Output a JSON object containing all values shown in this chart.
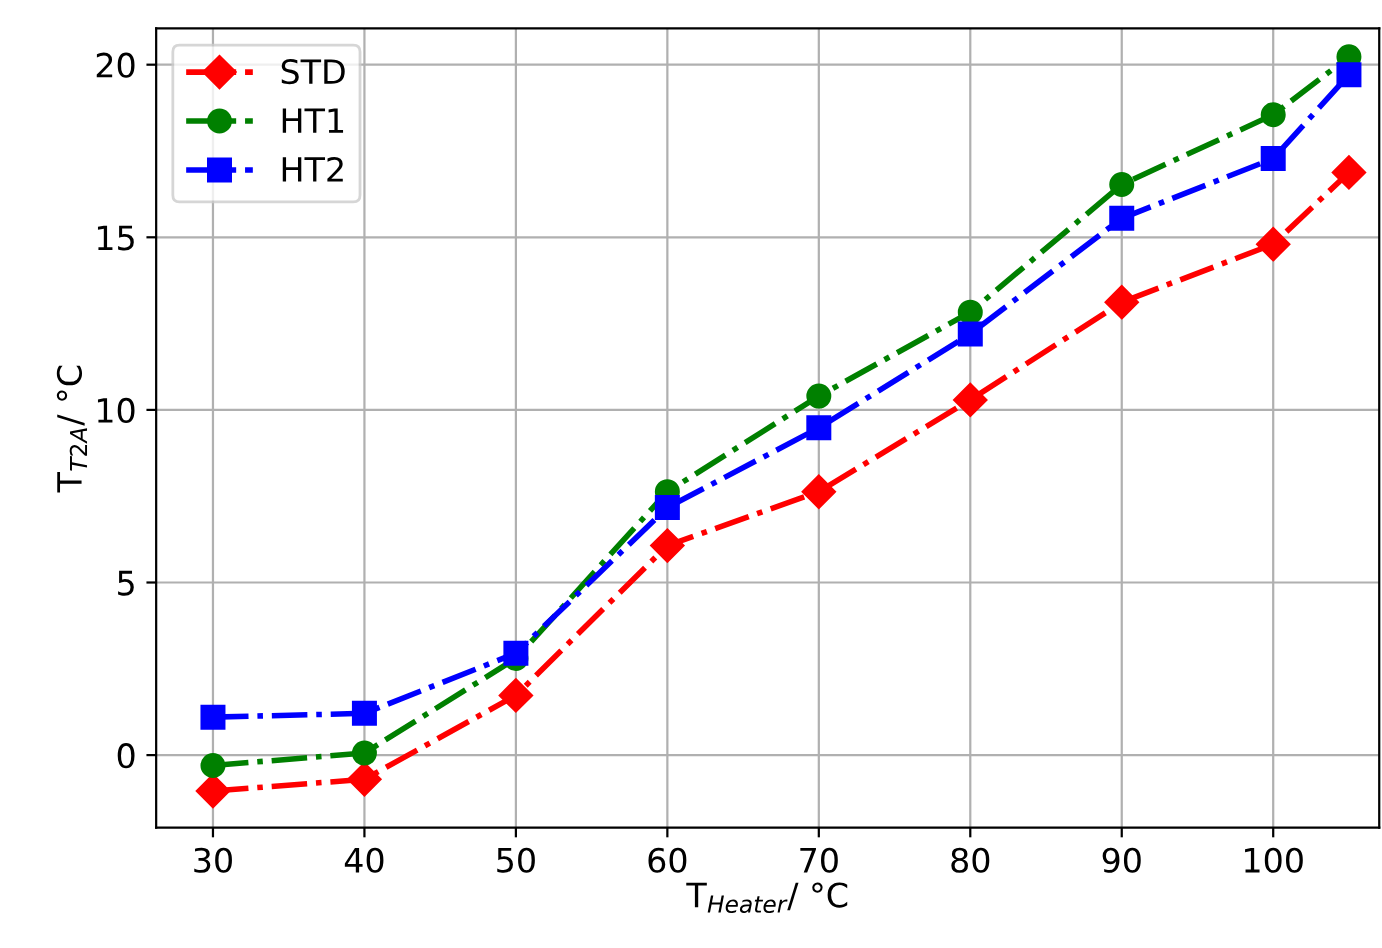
{
  "chart_data": {
    "type": "line",
    "xlabel": "T$_{Heater}$/ °C",
    "ylabel": "T$_{T2A}$/ °C",
    "x": [
      30,
      40,
      50,
      60,
      70,
      80,
      90,
      100,
      105
    ],
    "series": [
      {
        "name": "STD",
        "color": "#ff0000",
        "marker": "diamond",
        "values": [
          -1.04,
          -0.7,
          1.73,
          6.07,
          7.63,
          10.29,
          13.12,
          14.8,
          16.88
        ]
      },
      {
        "name": "HT1",
        "color": "#008000",
        "marker": "circle",
        "values": [
          -0.3,
          0.06,
          2.8,
          7.63,
          10.4,
          12.83,
          16.53,
          18.55,
          20.23
        ]
      },
      {
        "name": "HT2",
        "color": "#0000ff",
        "marker": "square",
        "values": [
          1.1,
          1.21,
          2.95,
          7.17,
          9.48,
          12.2,
          15.55,
          17.28,
          19.71
        ]
      }
    ],
    "line_style": "dashdot",
    "xlim": [
      26.25,
      107.0
    ],
    "ylim": [
      -2.1,
      21.05
    ],
    "xticks": [
      30,
      40,
      50,
      60,
      70,
      80,
      90,
      100
    ],
    "yticks": [
      0,
      5,
      10,
      15,
      20
    ],
    "grid": true,
    "legend": "top left"
  }
}
